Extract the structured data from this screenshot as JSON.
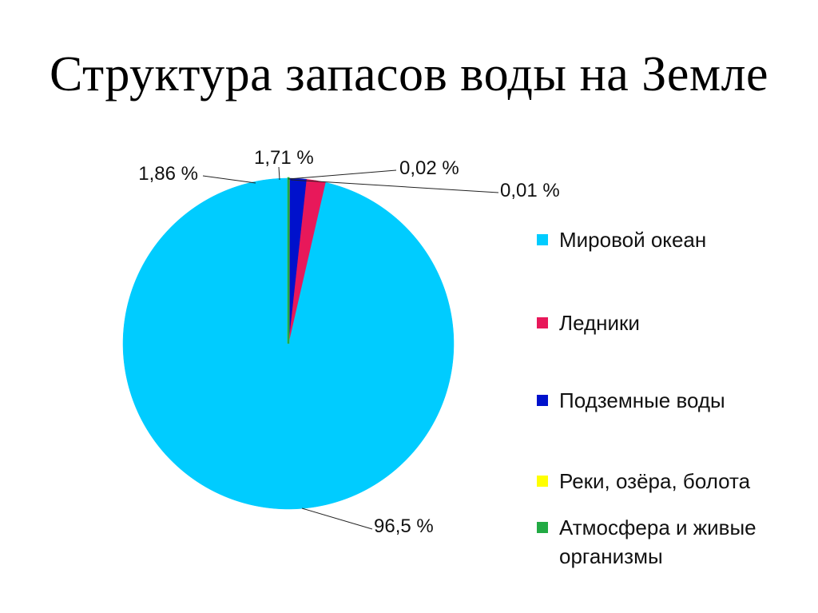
{
  "title": "Структура запасов воды на Земле",
  "colors": {
    "ocean": "#00CCFF",
    "glaciers": "#E8185A",
    "groundwater": "#0011CC",
    "lakes": "#FFFF00",
    "atmosphere": "#22AA44"
  },
  "chart_data": {
    "type": "pie",
    "title": "Структура запасов воды на Земле",
    "start_angle": "top, counterclockwise",
    "legend_position": "right",
    "slices": [
      {
        "name": "Мировой океан",
        "value": 96.5,
        "label": "96,5 %",
        "color": "#00CCFF"
      },
      {
        "name": "Ледники",
        "value": 1.86,
        "label": "1,86 %",
        "color": "#E8185A"
      },
      {
        "name": "Подземные воды",
        "value": 1.71,
        "label": "1,71 %",
        "color": "#0011CC"
      },
      {
        "name": "Реки, озёра, болота",
        "value": 0.02,
        "label": "0,02 %",
        "color": "#FFFF00"
      },
      {
        "name": "Атмосфера и живые организмы",
        "value": 0.01,
        "label": "0,01 %",
        "color": "#22AA44"
      }
    ]
  }
}
